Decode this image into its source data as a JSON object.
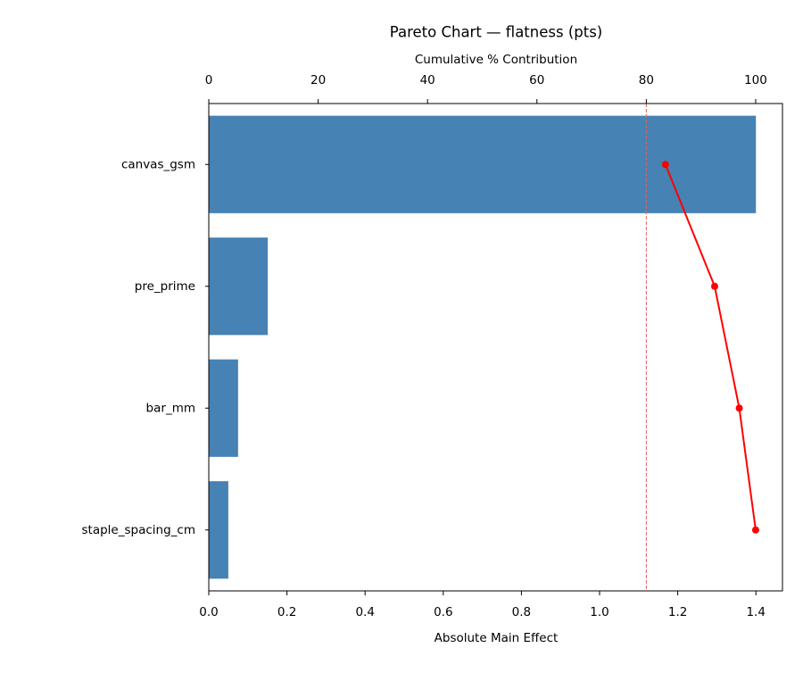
{
  "chart_data": {
    "type": "pareto",
    "title": "Pareto Chart — flatness (pts)",
    "xlabel": "Absolute Main Effect",
    "x2label": "Cumulative % Contribution",
    "categories": [
      "canvas_gsm",
      "pre_prime",
      "bar_mm",
      "staple_spacing_cm"
    ],
    "series": [
      {
        "color": "#4682b4",
        "values": [
          1.4,
          0.151,
          0.075,
          0.05
        ]
      },
      {
        "color": "#ff0000",
        "axis": "x2",
        "values": [
          83.5,
          92.5,
          97.0,
          100
        ]
      }
    ],
    "threshold": {
      "value": 80,
      "color": "#e06060",
      "axis": "x2"
    },
    "xlim": [
      0,
      1.468
    ],
    "xticks": [
      {
        "value": 0,
        "label": "0.0"
      },
      0.2,
      0.4,
      0.6,
      0.8,
      {
        "value": 1,
        "label": "1.0"
      },
      1.2,
      1.4
    ],
    "x2lim": [
      0,
      104.9
    ],
    "x2ticks": [
      0,
      20,
      40,
      60,
      80,
      100
    ]
  }
}
